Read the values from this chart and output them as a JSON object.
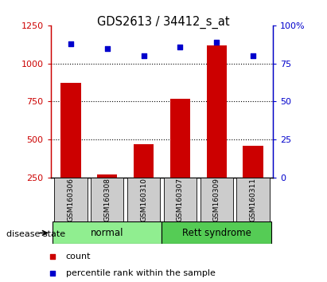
{
  "title": "GDS2613 / 34412_s_at",
  "samples": [
    "GSM160306",
    "GSM160308",
    "GSM160310",
    "GSM160307",
    "GSM160309",
    "GSM160311"
  ],
  "counts": [
    875,
    270,
    470,
    770,
    1120,
    460
  ],
  "percentiles": [
    88,
    85,
    80,
    86,
    89,
    80
  ],
  "bar_color": "#cc0000",
  "dot_color": "#0000cc",
  "ylim_left": [
    250,
    1250
  ],
  "ylim_right": [
    0,
    100
  ],
  "yticks_left": [
    250,
    500,
    750,
    1000,
    1250
  ],
  "yticks_right": [
    0,
    25,
    50,
    75,
    100
  ],
  "yticklabels_right": [
    "0",
    "25",
    "50",
    "75",
    "100%"
  ],
  "grid_values": [
    500,
    750,
    1000
  ],
  "normal_color": "#90ee90",
  "rett_color": "#55cc55",
  "label_box_color": "#cccccc",
  "legend_count_label": "count",
  "legend_pct_label": "percentile rank within the sample",
  "disease_state_label": "disease state"
}
